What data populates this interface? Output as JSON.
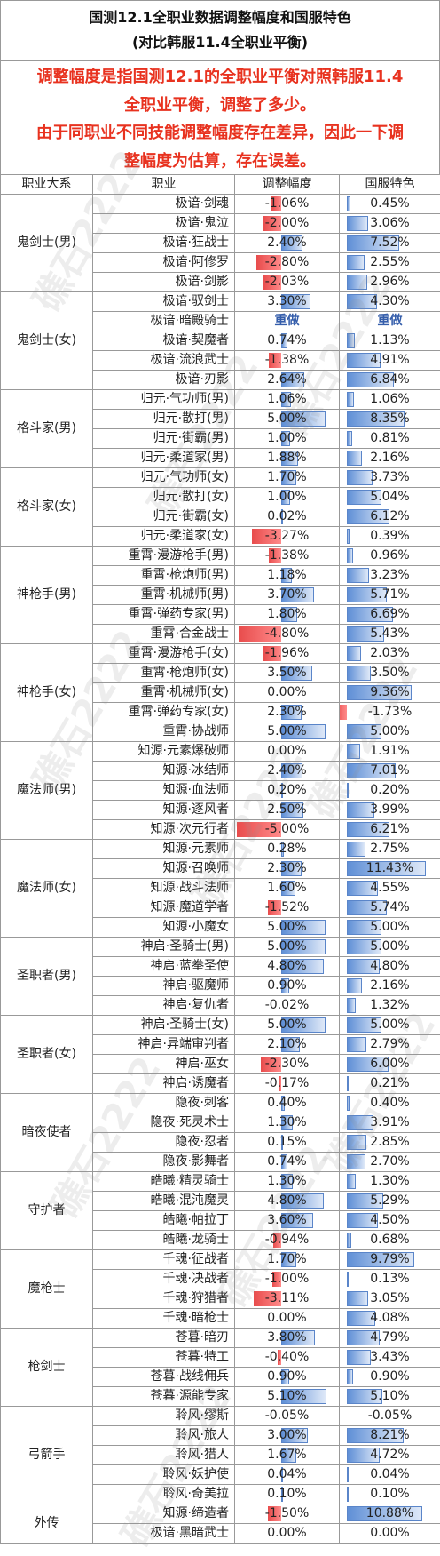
{
  "header": {
    "title_line1": "国测12.1全职业数据调整幅度和国服特色",
    "title_line2": "(对比韩服11.4全职业平衡)"
  },
  "note": {
    "line1": "调整幅度是指国测12.1的全职业平衡对照韩服11.4",
    "line2": "全职业平衡，调整了多少。",
    "line3": "由于同职业不同技能调整幅度存在差异，因此一下调",
    "line4": "整幅度为估算，存在误差。"
  },
  "columns": {
    "group": "职业大系",
    "job": "职业",
    "adjust": "调整幅度",
    "feature": "国服特色"
  },
  "watermark": "礁石2222",
  "groups": [
    {
      "name": "鬼剑士(男)",
      "rows": [
        {
          "job": "极谙·剑魂",
          "adj": "-1.06%",
          "a": -1.06,
          "feat": "0.45%",
          "f": 0.45
        },
        {
          "job": "极谙·鬼泣",
          "adj": "-2.00%",
          "a": -2.0,
          "feat": "3.06%",
          "f": 3.06
        },
        {
          "job": "极谙·狂战士",
          "adj": "2.40%",
          "a": 2.4,
          "feat": "7.52%",
          "f": 7.52
        },
        {
          "job": "极谙·阿修罗",
          "adj": "-2.80%",
          "a": -2.8,
          "feat": "2.55%",
          "f": 2.55
        },
        {
          "job": "极谙·剑影",
          "adj": "-2.03%",
          "a": -2.03,
          "feat": "2.96%",
          "f": 2.96
        }
      ]
    },
    {
      "name": "鬼剑士(女)",
      "rows": [
        {
          "job": "极谙·驭剑士",
          "adj": "3.30%",
          "a": 3.3,
          "feat": "4.30%",
          "f": 4.3
        },
        {
          "job": "极谙·暗殿骑士",
          "adj": "重做",
          "a": null,
          "feat": "重做",
          "f": null
        },
        {
          "job": "极谙·契魔者",
          "adj": "0.74%",
          "a": 0.74,
          "feat": "1.13%",
          "f": 1.13
        },
        {
          "job": "极谙·流浪武士",
          "adj": "-1.38%",
          "a": -1.38,
          "feat": "4.91%",
          "f": 4.91
        },
        {
          "job": "极谙·刃影",
          "adj": "2.64%",
          "a": 2.64,
          "feat": "6.84%",
          "f": 6.84
        }
      ]
    },
    {
      "name": "格斗家(男)",
      "rows": [
        {
          "job": "归元·气功师(男)",
          "adj": "1.06%",
          "a": 1.06,
          "feat": "1.06%",
          "f": 1.06
        },
        {
          "job": "归元·散打(男)",
          "adj": "5.00%",
          "a": 5.0,
          "feat": "8.35%",
          "f": 8.35
        },
        {
          "job": "归元·街霸(男)",
          "adj": "1.00%",
          "a": 1.0,
          "feat": "0.81%",
          "f": 0.81
        },
        {
          "job": "归元·柔道家(男)",
          "adj": "1.88%",
          "a": 1.88,
          "feat": "2.16%",
          "f": 2.16
        }
      ]
    },
    {
      "name": "格斗家(女)",
      "rows": [
        {
          "job": "归元·气功师(女)",
          "adj": "1.70%",
          "a": 1.7,
          "feat": "3.73%",
          "f": 3.73
        },
        {
          "job": "归元·散打(女)",
          "adj": "1.00%",
          "a": 1.0,
          "feat": "5.04%",
          "f": 5.04
        },
        {
          "job": "归元·街霸(女)",
          "adj": "0.02%",
          "a": 0.02,
          "feat": "6.12%",
          "f": 6.12
        },
        {
          "job": "归元·柔道家(女)",
          "adj": "-3.27%",
          "a": -3.27,
          "feat": "0.39%",
          "f": 0.39
        }
      ]
    },
    {
      "name": "神枪手(男)",
      "rows": [
        {
          "job": "重霄·漫游枪手(男)",
          "adj": "-1.38%",
          "a": -1.38,
          "feat": "0.96%",
          "f": 0.96
        },
        {
          "job": "重霄·枪炮师(男)",
          "adj": "1.18%",
          "a": 1.18,
          "feat": "3.23%",
          "f": 3.23
        },
        {
          "job": "重霄·机械师(男)",
          "adj": "3.70%",
          "a": 3.7,
          "feat": "5.71%",
          "f": 5.71
        },
        {
          "job": "重霄·弹药专家(男)",
          "adj": "1.80%",
          "a": 1.8,
          "feat": "6.69%",
          "f": 6.69
        },
        {
          "job": "重霄·合金战士",
          "adj": "-4.80%",
          "a": -4.8,
          "feat": "5.43%",
          "f": 5.43
        }
      ]
    },
    {
      "name": "神枪手(女)",
      "rows": [
        {
          "job": "重霄·漫游枪手(女)",
          "adj": "-1.96%",
          "a": -1.96,
          "feat": "2.03%",
          "f": 2.03
        },
        {
          "job": "重霄·枪炮师(女)",
          "adj": "3.50%",
          "a": 3.5,
          "feat": "3.50%",
          "f": 3.5
        },
        {
          "job": "重霄·机械师(女)",
          "adj": "0.00%",
          "a": 0.0,
          "feat": "9.36%",
          "f": 9.36
        },
        {
          "job": "重霄·弹药专家(女)",
          "adj": "2.30%",
          "a": 2.3,
          "feat": "-1.73%",
          "f": -1.73
        },
        {
          "job": "重霄·协战师",
          "adj": "5.00%",
          "a": 5.0,
          "feat": "5.00%",
          "f": 5.0
        }
      ]
    },
    {
      "name": "魔法师(男)",
      "rows": [
        {
          "job": "知源·元素爆破师",
          "adj": "0.00%",
          "a": 0.0,
          "feat": "1.91%",
          "f": 1.91
        },
        {
          "job": "知源·冰结师",
          "adj": "2.40%",
          "a": 2.4,
          "feat": "7.01%",
          "f": 7.01
        },
        {
          "job": "知源·血法师",
          "adj": "0.20%",
          "a": 0.2,
          "feat": "0.20%",
          "f": 0.2
        },
        {
          "job": "知源·逐风者",
          "adj": "2.50%",
          "a": 2.5,
          "feat": "3.99%",
          "f": 3.99
        },
        {
          "job": "知源·次元行者",
          "adj": "-5.00%",
          "a": -5.0,
          "feat": "6.21%",
          "f": 6.21
        }
      ]
    },
    {
      "name": "魔法师(女)",
      "rows": [
        {
          "job": "知源·元素师",
          "adj": "0.28%",
          "a": 0.28,
          "feat": "2.75%",
          "f": 2.75
        },
        {
          "job": "知源·召唤师",
          "adj": "2.30%",
          "a": 2.3,
          "feat": "11.43%",
          "f": 11.43
        },
        {
          "job": "知源·战斗法师",
          "adj": "1.60%",
          "a": 1.6,
          "feat": "4.55%",
          "f": 4.55
        },
        {
          "job": "知源·魔道学者",
          "adj": "-1.52%",
          "a": -1.52,
          "feat": "5.74%",
          "f": 5.74
        },
        {
          "job": "知源·小魔女",
          "adj": "5.00%",
          "a": 5.0,
          "feat": "5.00%",
          "f": 5.0
        }
      ]
    },
    {
      "name": "圣职者(男)",
      "rows": [
        {
          "job": "神启·圣骑士(男)",
          "adj": "5.00%",
          "a": 5.0,
          "feat": "5.00%",
          "f": 5.0
        },
        {
          "job": "神启·蓝拳圣使",
          "adj": "4.80%",
          "a": 4.8,
          "feat": "4.80%",
          "f": 4.8
        },
        {
          "job": "神启·驱魔师",
          "adj": "0.90%",
          "a": 0.9,
          "feat": "2.16%",
          "f": 2.16
        },
        {
          "job": "神启·复仇者",
          "adj": "-0.02%",
          "a": -0.02,
          "feat": "1.32%",
          "f": 1.32
        }
      ]
    },
    {
      "name": "圣职者(女)",
      "rows": [
        {
          "job": "神启·圣骑士(女)",
          "adj": "5.00%",
          "a": 5.0,
          "feat": "5.00%",
          "f": 5.0
        },
        {
          "job": "神启·异端审判者",
          "adj": "2.10%",
          "a": 2.1,
          "feat": "2.79%",
          "f": 2.79
        },
        {
          "job": "神启·巫女",
          "adj": "-2.30%",
          "a": -2.3,
          "feat": "6.00%",
          "f": 6.0
        },
        {
          "job": "神启·诱魔者",
          "adj": "-0.17%",
          "a": -0.17,
          "feat": "0.21%",
          "f": 0.21
        }
      ]
    },
    {
      "name": "暗夜使者",
      "rows": [
        {
          "job": "隐夜·刺客",
          "adj": "0.40%",
          "a": 0.4,
          "feat": "0.40%",
          "f": 0.4
        },
        {
          "job": "隐夜·死灵术士",
          "adj": "1.30%",
          "a": 1.3,
          "feat": "3.91%",
          "f": 3.91
        },
        {
          "job": "隐夜·忍者",
          "adj": "0.15%",
          "a": 0.15,
          "feat": "2.85%",
          "f": 2.85
        },
        {
          "job": "隐夜·影舞者",
          "adj": "0.74%",
          "a": 0.74,
          "feat": "2.70%",
          "f": 2.7
        }
      ]
    },
    {
      "name": "守护者",
      "rows": [
        {
          "job": "皓曦·精灵骑士",
          "adj": "1.30%",
          "a": 1.3,
          "feat": "1.30%",
          "f": 1.3
        },
        {
          "job": "皓曦·混沌魔灵",
          "adj": "4.80%",
          "a": 4.8,
          "feat": "5.29%",
          "f": 5.29
        },
        {
          "job": "皓曦·帕拉丁",
          "adj": "3.60%",
          "a": 3.6,
          "feat": "4.50%",
          "f": 4.5
        },
        {
          "job": "皓曦·龙骑士",
          "adj": "-0.94%",
          "a": -0.94,
          "feat": "0.68%",
          "f": 0.68
        }
      ]
    },
    {
      "name": "魔枪士",
      "rows": [
        {
          "job": "千魂·征战者",
          "adj": "1.70%",
          "a": 1.7,
          "feat": "9.79%",
          "f": 9.79
        },
        {
          "job": "千魂·决战者",
          "adj": "-1.00%",
          "a": -1.0,
          "feat": "0.13%",
          "f": 0.13
        },
        {
          "job": "千魂·狩猎者",
          "adj": "-3.11%",
          "a": -3.11,
          "feat": "3.05%",
          "f": 3.05
        },
        {
          "job": "千魂·暗枪士",
          "adj": "0.00%",
          "a": 0.0,
          "feat": "4.08%",
          "f": 4.08
        }
      ]
    },
    {
      "name": "枪剑士",
      "rows": [
        {
          "job": "苍暮·暗刃",
          "adj": "3.80%",
          "a": 3.8,
          "feat": "4.79%",
          "f": 4.79
        },
        {
          "job": "苍暮·特工",
          "adj": "-0.40%",
          "a": -0.4,
          "feat": "3.43%",
          "f": 3.43
        },
        {
          "job": "苍暮·战线佣兵",
          "adj": "0.90%",
          "a": 0.9,
          "feat": "0.90%",
          "f": 0.9
        },
        {
          "job": "苍暮·源能专家",
          "adj": "5.10%",
          "a": 5.1,
          "feat": "5.10%",
          "f": 5.1
        }
      ]
    },
    {
      "name": "弓箭手",
      "rows": [
        {
          "job": "聆风·缪斯",
          "adj": "-0.05%",
          "a": -0.05,
          "feat": "-0.05%",
          "f": -0.05
        },
        {
          "job": "聆风·旅人",
          "adj": "3.00%",
          "a": 3.0,
          "feat": "8.21%",
          "f": 8.21
        },
        {
          "job": "聆风·猎人",
          "adj": "1.67%",
          "a": 1.67,
          "feat": "4.72%",
          "f": 4.72
        },
        {
          "job": "聆风·妖护使",
          "adj": "0.04%",
          "a": 0.04,
          "feat": "0.04%",
          "f": 0.04
        },
        {
          "job": "聆风·奇美拉",
          "adj": "0.10%",
          "a": 0.1,
          "feat": "0.10%",
          "f": 0.1
        }
      ]
    },
    {
      "name": "外传",
      "rows": [
        {
          "job": "知源·缔造者",
          "adj": "-1.50%",
          "a": -1.5,
          "feat": "10.88%",
          "f": 10.88
        },
        {
          "job": "极谙·黑暗武士",
          "adj": "0.00%",
          "a": 0.0,
          "feat": "0.00%",
          "f": 0.0
        }
      ]
    }
  ]
}
